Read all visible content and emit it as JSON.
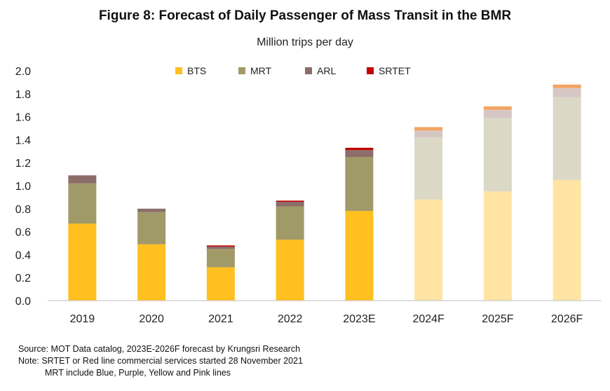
{
  "chart_data": {
    "type": "bar",
    "stacked": true,
    "title": "Figure  8: Forecast of Daily Passenger of Mass Transit  in the BMR",
    "subtitle": "Million trips per day",
    "categories": [
      "2019",
      "2020",
      "2021",
      "2022",
      "2023E",
      "2024F",
      "2025F",
      "2026F"
    ],
    "forecast_categories": [
      "2024F",
      "2025F",
      "2026F"
    ],
    "ylim": [
      0,
      2.0
    ],
    "yticks": [
      "0.0",
      "0.2",
      "0.4",
      "0.6",
      "0.8",
      "1.0",
      "1.2",
      "1.4",
      "1.6",
      "1.8",
      "2.0"
    ],
    "grid": false,
    "legend_position": "top",
    "series": [
      {
        "name": "BTS",
        "color": "#FFC020",
        "forecast_color": "#FFE4A3",
        "values": [
          0.67,
          0.49,
          0.29,
          0.53,
          0.78,
          0.88,
          0.95,
          1.05
        ]
      },
      {
        "name": "MRT",
        "color": "#A09A68",
        "forecast_color": "#DBD8C6",
        "values": [
          0.35,
          0.28,
          0.16,
          0.29,
          0.47,
          0.54,
          0.64,
          0.72
        ]
      },
      {
        "name": "ARL",
        "color": "#8C6D6A",
        "forecast_color": "#D6C6C4",
        "values": [
          0.07,
          0.03,
          0.02,
          0.04,
          0.06,
          0.06,
          0.07,
          0.08
        ]
      },
      {
        "name": "SRTET",
        "color": "#C00000",
        "forecast_color": "#F4A460",
        "values": [
          0.0,
          0.0,
          0.01,
          0.01,
          0.02,
          0.03,
          0.03,
          0.03
        ]
      }
    ]
  },
  "notes": {
    "source": "Source: MOT Data catalog, 2023E-2026F forecast by Krungsri Research",
    "note": "Note: SRTET or Red line commercial services started 28 November 2021",
    "note2": "MRT include Blue, Purple, Yellow and Pink lines"
  }
}
